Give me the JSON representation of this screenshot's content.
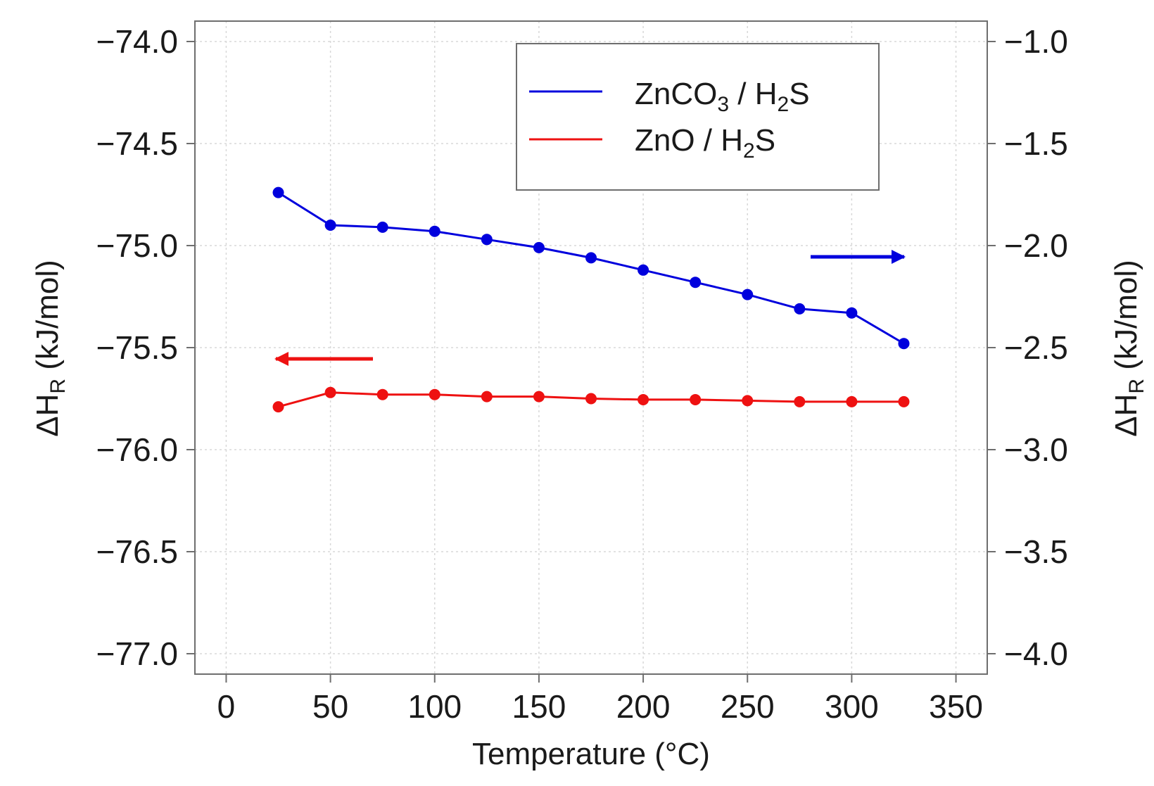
{
  "chart_data": {
    "type": "line",
    "title": "",
    "xlabel": "Temperature (°C)",
    "ylabel_left": {
      "main": "ΔH",
      "sub": "R",
      "rest": " (kJ/mol)"
    },
    "ylabel_right": {
      "main": "ΔH",
      "sub": "R",
      "rest": " (kJ/mol)"
    },
    "xlim": [
      -15,
      365
    ],
    "xticks": [
      0,
      50,
      100,
      150,
      200,
      250,
      300,
      350
    ],
    "xtick_labels": [
      "0",
      "50",
      "100",
      "150",
      "200",
      "250",
      "300",
      "350"
    ],
    "ylim_left": [
      -77.1,
      -73.9
    ],
    "yticks_left": [
      -74.0,
      -74.5,
      -75.0,
      -75.5,
      -76.0,
      -76.5,
      -77.0
    ],
    "ytick_labels_left": [
      "−74.0",
      "−74.5",
      "−75.0",
      "−75.5",
      "−76.0",
      "−76.5",
      "−77.0"
    ],
    "ylim_right": [
      -4.1,
      -0.9
    ],
    "yticks_right": [
      -1.0,
      -1.5,
      -2.0,
      -2.5,
      -3.0,
      -3.5,
      -4.0
    ],
    "ytick_labels_right": [
      "−1.0",
      "−1.5",
      "−2.0",
      "−2.5",
      "−3.0",
      "−3.5",
      "−4.0"
    ],
    "grid": true,
    "legend_position": "top-right",
    "x": [
      25,
      50,
      75,
      100,
      125,
      150,
      175,
      200,
      225,
      250,
      275,
      300,
      325
    ],
    "series": [
      {
        "name": "ZnCO3 / H2S",
        "label_parts": {
          "a": "ZnCO",
          "a_sub": "3",
          "b": " / H",
          "b_sub": "2",
          "c": "S"
        },
        "axis": "right",
        "color": "#0000dd",
        "values": [
          -1.74,
          -1.9,
          -1.91,
          -1.93,
          -1.97,
          -2.01,
          -2.06,
          -2.12,
          -2.18,
          -2.24,
          -2.31,
          -2.33,
          -2.48
        ]
      },
      {
        "name": "ZnO / H2S",
        "label_parts": {
          "a": "ZnO",
          "a_sub": "",
          "b": " / H",
          "b_sub": "2",
          "c": "S"
        },
        "axis": "left",
        "color": "#ee1111",
        "values": [
          -75.79,
          -75.72,
          -75.73,
          -75.73,
          -75.74,
          -75.74,
          -75.75,
          -75.755,
          -75.755,
          -75.76,
          -75.765,
          -75.765,
          -75.765
        ]
      }
    ],
    "annotations": [
      {
        "type": "arrow",
        "direction": "left",
        "points_to_axis": "left",
        "color": "#ee1111"
      },
      {
        "type": "arrow",
        "direction": "right",
        "points_to_axis": "right",
        "color": "#0000dd"
      }
    ]
  }
}
